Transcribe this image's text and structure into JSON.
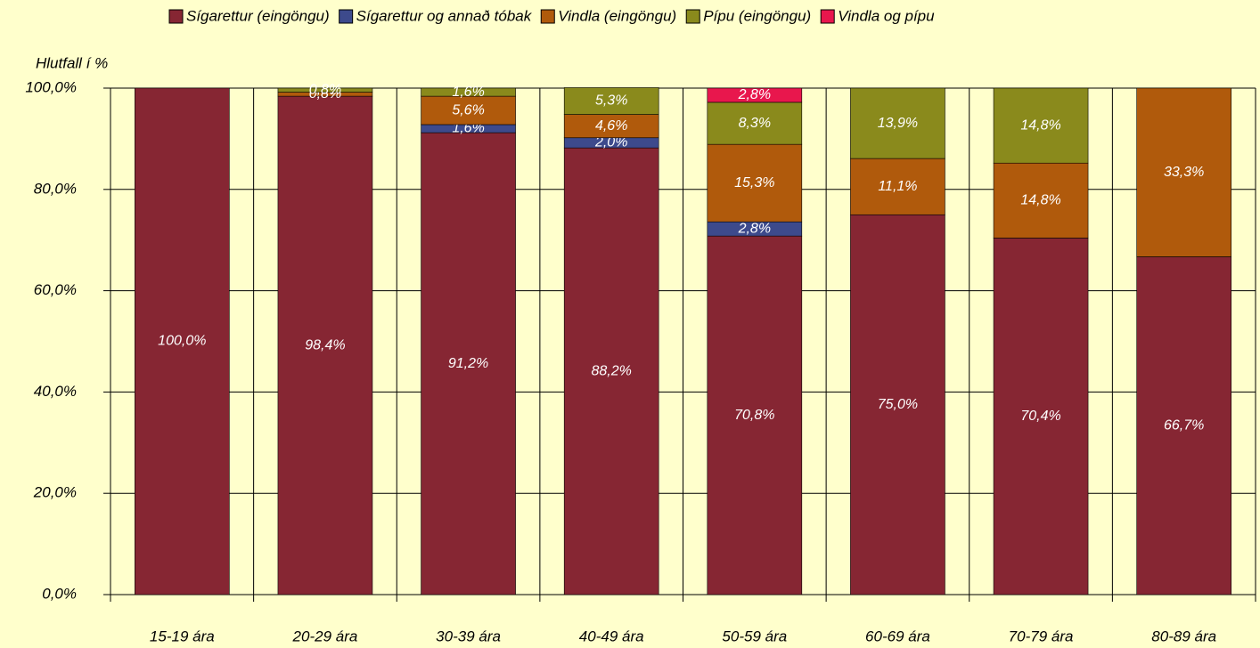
{
  "chart_data": {
    "type": "stacked_bar",
    "y_axis_label": "Hlutfall í %",
    "categories": [
      "15-19 ára",
      "20-29 ára",
      "30-39 ára",
      "40-49 ára",
      "50-59 ára",
      "60-69 ára",
      "70-79 ára",
      "80-89 ára"
    ],
    "series": [
      {
        "name": "Sígarettur (eingöngu)",
        "color": "#862633",
        "values": [
          100.0,
          98.4,
          91.2,
          88.2,
          70.8,
          75.0,
          70.4,
          66.7
        ],
        "value_labels": [
          "100,0%",
          "98,4%",
          "91,2%",
          "88,2%",
          "70,8%",
          "75,0%",
          "70,4%",
          "66,7%"
        ]
      },
      {
        "name": "Sígarettur og annað tóbak",
        "color": "#3d4a8c",
        "values": [
          null,
          null,
          1.6,
          2.0,
          2.8,
          null,
          null,
          null
        ],
        "value_labels": [
          null,
          null,
          "1,6%",
          "2,0%",
          "2,8%",
          null,
          null,
          null
        ]
      },
      {
        "name": "Vindla (eingöngu)",
        "color": "#b05a0c",
        "values": [
          null,
          0.8,
          5.6,
          4.6,
          15.3,
          11.1,
          14.8,
          33.3
        ],
        "value_labels": [
          null,
          "0,8%",
          "5,6%",
          "4,6%",
          "15,3%",
          "11,1%",
          "14,8%",
          "33,3%"
        ]
      },
      {
        "name": "Pípu (eingöngu)",
        "color": "#8a8a1c",
        "values": [
          null,
          0.8,
          1.6,
          5.3,
          8.3,
          13.9,
          14.8,
          null
        ],
        "value_labels": [
          null,
          "0,8%",
          "1,6%",
          "5,3%",
          "8,3%",
          "13,9%",
          "14,8%",
          null
        ]
      },
      {
        "name": "Vindla og pípu",
        "color": "#e8174d",
        "values": [
          null,
          null,
          null,
          null,
          2.8,
          null,
          null,
          null
        ],
        "value_labels": [
          null,
          null,
          null,
          null,
          "2,8%",
          null,
          null,
          null
        ]
      }
    ],
    "ylim": [
      0,
      100
    ],
    "yticks": [
      {
        "value": 0,
        "label": "0,0%"
      },
      {
        "value": 20,
        "label": "20,0%"
      },
      {
        "value": 40,
        "label": "40,0%"
      },
      {
        "value": 60,
        "label": "60,0%"
      },
      {
        "value": 80,
        "label": "80,0%"
      },
      {
        "value": 100,
        "label": "100,0%"
      }
    ],
    "grid": true,
    "legend": "top"
  }
}
